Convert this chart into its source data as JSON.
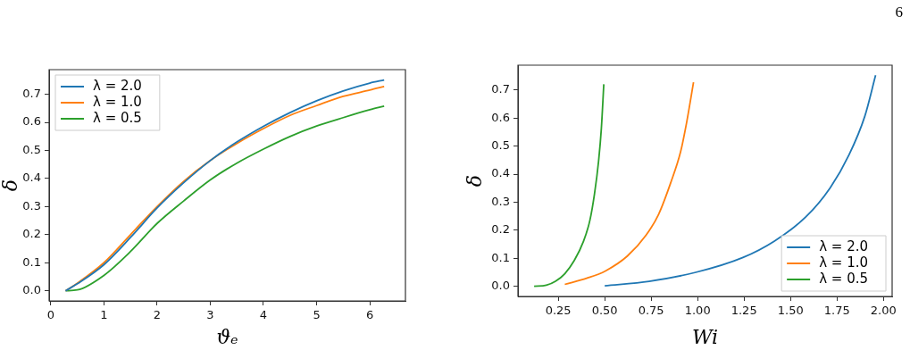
{
  "chart_data": [
    {
      "type": "line",
      "xlabel": "ϑₑ",
      "ylabel": "δ",
      "xlim": [
        -0.03,
        6.67
      ],
      "ylim": [
        -0.036,
        0.788
      ],
      "xticks": [
        0,
        1,
        2,
        3,
        4,
        5,
        6
      ],
      "yticks": [
        {
          "value": 0,
          "label": "0.0"
        },
        0.1,
        0.2,
        0.3,
        0.4,
        0.5,
        0.6,
        0.7
      ],
      "grid": false,
      "legend": "top left",
      "marker": "none",
      "line_style": "solid",
      "series": [
        {
          "name": "λ = 2.0",
          "color": "#1f77b4",
          "x": [
            0.28,
            0.5,
            1.0,
            1.5,
            2.0,
            2.5,
            3.0,
            3.5,
            4.0,
            4.5,
            5.0,
            5.5,
            6.0,
            6.27
          ],
          "values": [
            0,
            0.025,
            0.093,
            0.19,
            0.295,
            0.385,
            0.464,
            0.53,
            0.586,
            0.635,
            0.677,
            0.712,
            0.74,
            0.751
          ]
        },
        {
          "name": "λ = 1.0",
          "color": "#ff7f0e",
          "x": [
            0.28,
            0.5,
            1.0,
            1.5,
            2.0,
            2.5,
            3.0,
            3.5,
            4.0,
            4.5,
            5.0,
            5.5,
            6.0,
            6.27
          ],
          "values": [
            0,
            0.027,
            0.1,
            0.2,
            0.3,
            0.39,
            0.464,
            0.525,
            0.578,
            0.625,
            0.66,
            0.693,
            0.715,
            0.728
          ]
        },
        {
          "name": "λ = 0.5",
          "color": "#2ca02c",
          "x": [
            0.28,
            0.5,
            1.0,
            1.5,
            2.0,
            2.5,
            3.0,
            3.5,
            4.0,
            4.5,
            5.0,
            5.5,
            6.0,
            6.27
          ],
          "values": [
            0,
            0.003,
            0.055,
            0.14,
            0.24,
            0.32,
            0.395,
            0.455,
            0.505,
            0.55,
            0.587,
            0.617,
            0.645,
            0.658
          ]
        }
      ]
    },
    {
      "type": "line",
      "xlabel": "Wi",
      "ylabel": "δ",
      "xlim": [
        0.033,
        2.047
      ],
      "ylim": [
        -0.036,
        0.789
      ],
      "xticks": [
        {
          "value": 0.25,
          "label": "0.25"
        },
        {
          "value": 0.5,
          "label": "0.50"
        },
        {
          "value": 0.75,
          "label": "0.75"
        },
        {
          "value": 1.0,
          "label": "1.00"
        },
        {
          "value": 1.25,
          "label": "1.25"
        },
        {
          "value": 1.5,
          "label": "1.50"
        },
        {
          "value": 1.75,
          "label": "1.75"
        },
        {
          "value": 2.0,
          "label": "2.00"
        }
      ],
      "yticks": [
        {
          "value": 0,
          "label": "0.0"
        },
        0.1,
        0.2,
        0.3,
        0.4,
        0.5,
        0.6,
        0.7
      ],
      "grid": false,
      "legend": "bottom right",
      "marker": "none",
      "line_style": "solid",
      "annotations": [
        "6"
      ],
      "series": [
        {
          "name": "λ = 2.0",
          "color": "#1f77b4",
          "x": [
            0.5,
            0.739,
            0.99,
            1.244,
            1.412,
            1.58,
            1.714,
            1.815,
            1.9,
            1.958
          ],
          "values": [
            0.002,
            0.018,
            0.05,
            0.103,
            0.161,
            0.246,
            0.352,
            0.469,
            0.607,
            0.753
          ]
        },
        {
          "name": "λ = 1.0",
          "color": "#ff7f0e",
          "x": [
            0.285,
            0.403,
            0.504,
            0.622,
            0.722,
            0.79,
            0.857,
            0.908,
            0.941,
            0.978
          ],
          "values": [
            0.007,
            0.029,
            0.055,
            0.108,
            0.182,
            0.257,
            0.373,
            0.479,
            0.585,
            0.728
          ]
        },
        {
          "name": "λ = 0.5",
          "color": "#2ca02c",
          "x": [
            0.12,
            0.186,
            0.235,
            0.285,
            0.336,
            0.386,
            0.42,
            0.445,
            0.467,
            0.482,
            0.495
          ],
          "values": [
            0,
            0.004,
            0.018,
            0.045,
            0.092,
            0.161,
            0.235,
            0.33,
            0.447,
            0.564,
            0.721
          ]
        }
      ]
    }
  ]
}
